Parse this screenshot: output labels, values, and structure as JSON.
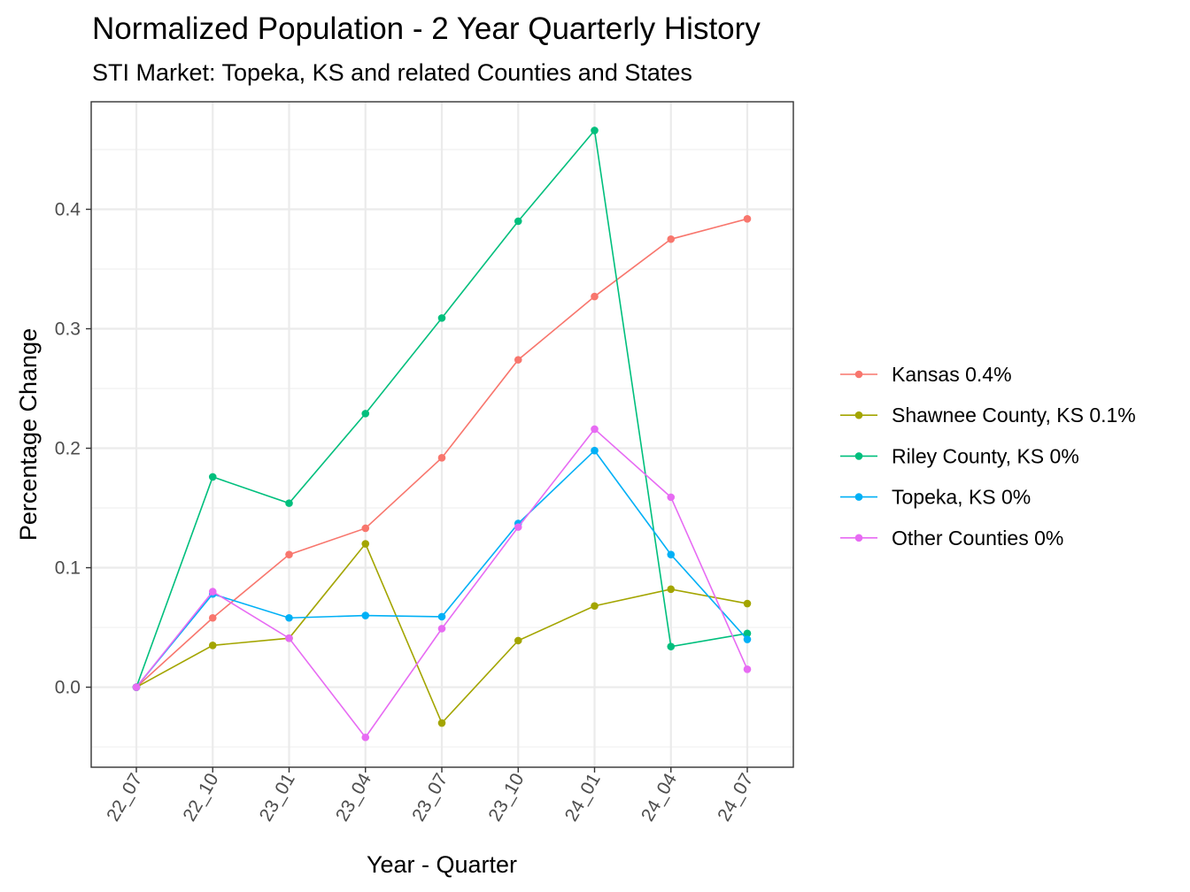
{
  "chart_data": {
    "type": "line",
    "title": "Normalized Population - 2 Year Quarterly History",
    "subtitle": "STI Market: Topeka, KS and related Counties and States",
    "xlabel": "Year - Quarter",
    "ylabel": "Percentage Change",
    "categories": [
      "22_07",
      "22_10",
      "23_01",
      "23_04",
      "23_07",
      "23_10",
      "24_01",
      "24_04",
      "24_07"
    ],
    "y_ticks": [
      0.0,
      0.1,
      0.2,
      0.3,
      0.4
    ],
    "y_tick_labels": [
      "0.0",
      "0.1",
      "0.2",
      "0.3",
      "0.4"
    ],
    "ylim": [
      -0.067,
      0.49
    ],
    "grid": true,
    "legend_position": "right",
    "series": [
      {
        "name": "Kansas 0.4%",
        "color": "#F8766D",
        "values": [
          0.0,
          0.058,
          0.111,
          0.133,
          0.192,
          0.274,
          0.327,
          0.375,
          0.392
        ]
      },
      {
        "name": "Shawnee County, KS 0.1%",
        "color": "#A3A500",
        "values": [
          0.0,
          0.035,
          0.041,
          0.12,
          -0.03,
          0.039,
          0.068,
          0.082,
          0.07
        ]
      },
      {
        "name": "Riley County, KS 0%",
        "color": "#00BF7D",
        "values": [
          0.0,
          0.176,
          0.154,
          0.229,
          0.309,
          0.39,
          0.466,
          0.034,
          0.045
        ]
      },
      {
        "name": "Topeka, KS 0%",
        "color": "#00B0F6",
        "values": [
          0.0,
          0.078,
          0.058,
          0.06,
          0.059,
          0.137,
          0.198,
          0.111,
          0.04
        ]
      },
      {
        "name": "Other Counties 0%",
        "color": "#E76BF3",
        "values": [
          0.0,
          0.08,
          0.041,
          -0.042,
          0.049,
          0.134,
          0.216,
          0.159,
          0.015
        ]
      }
    ]
  }
}
